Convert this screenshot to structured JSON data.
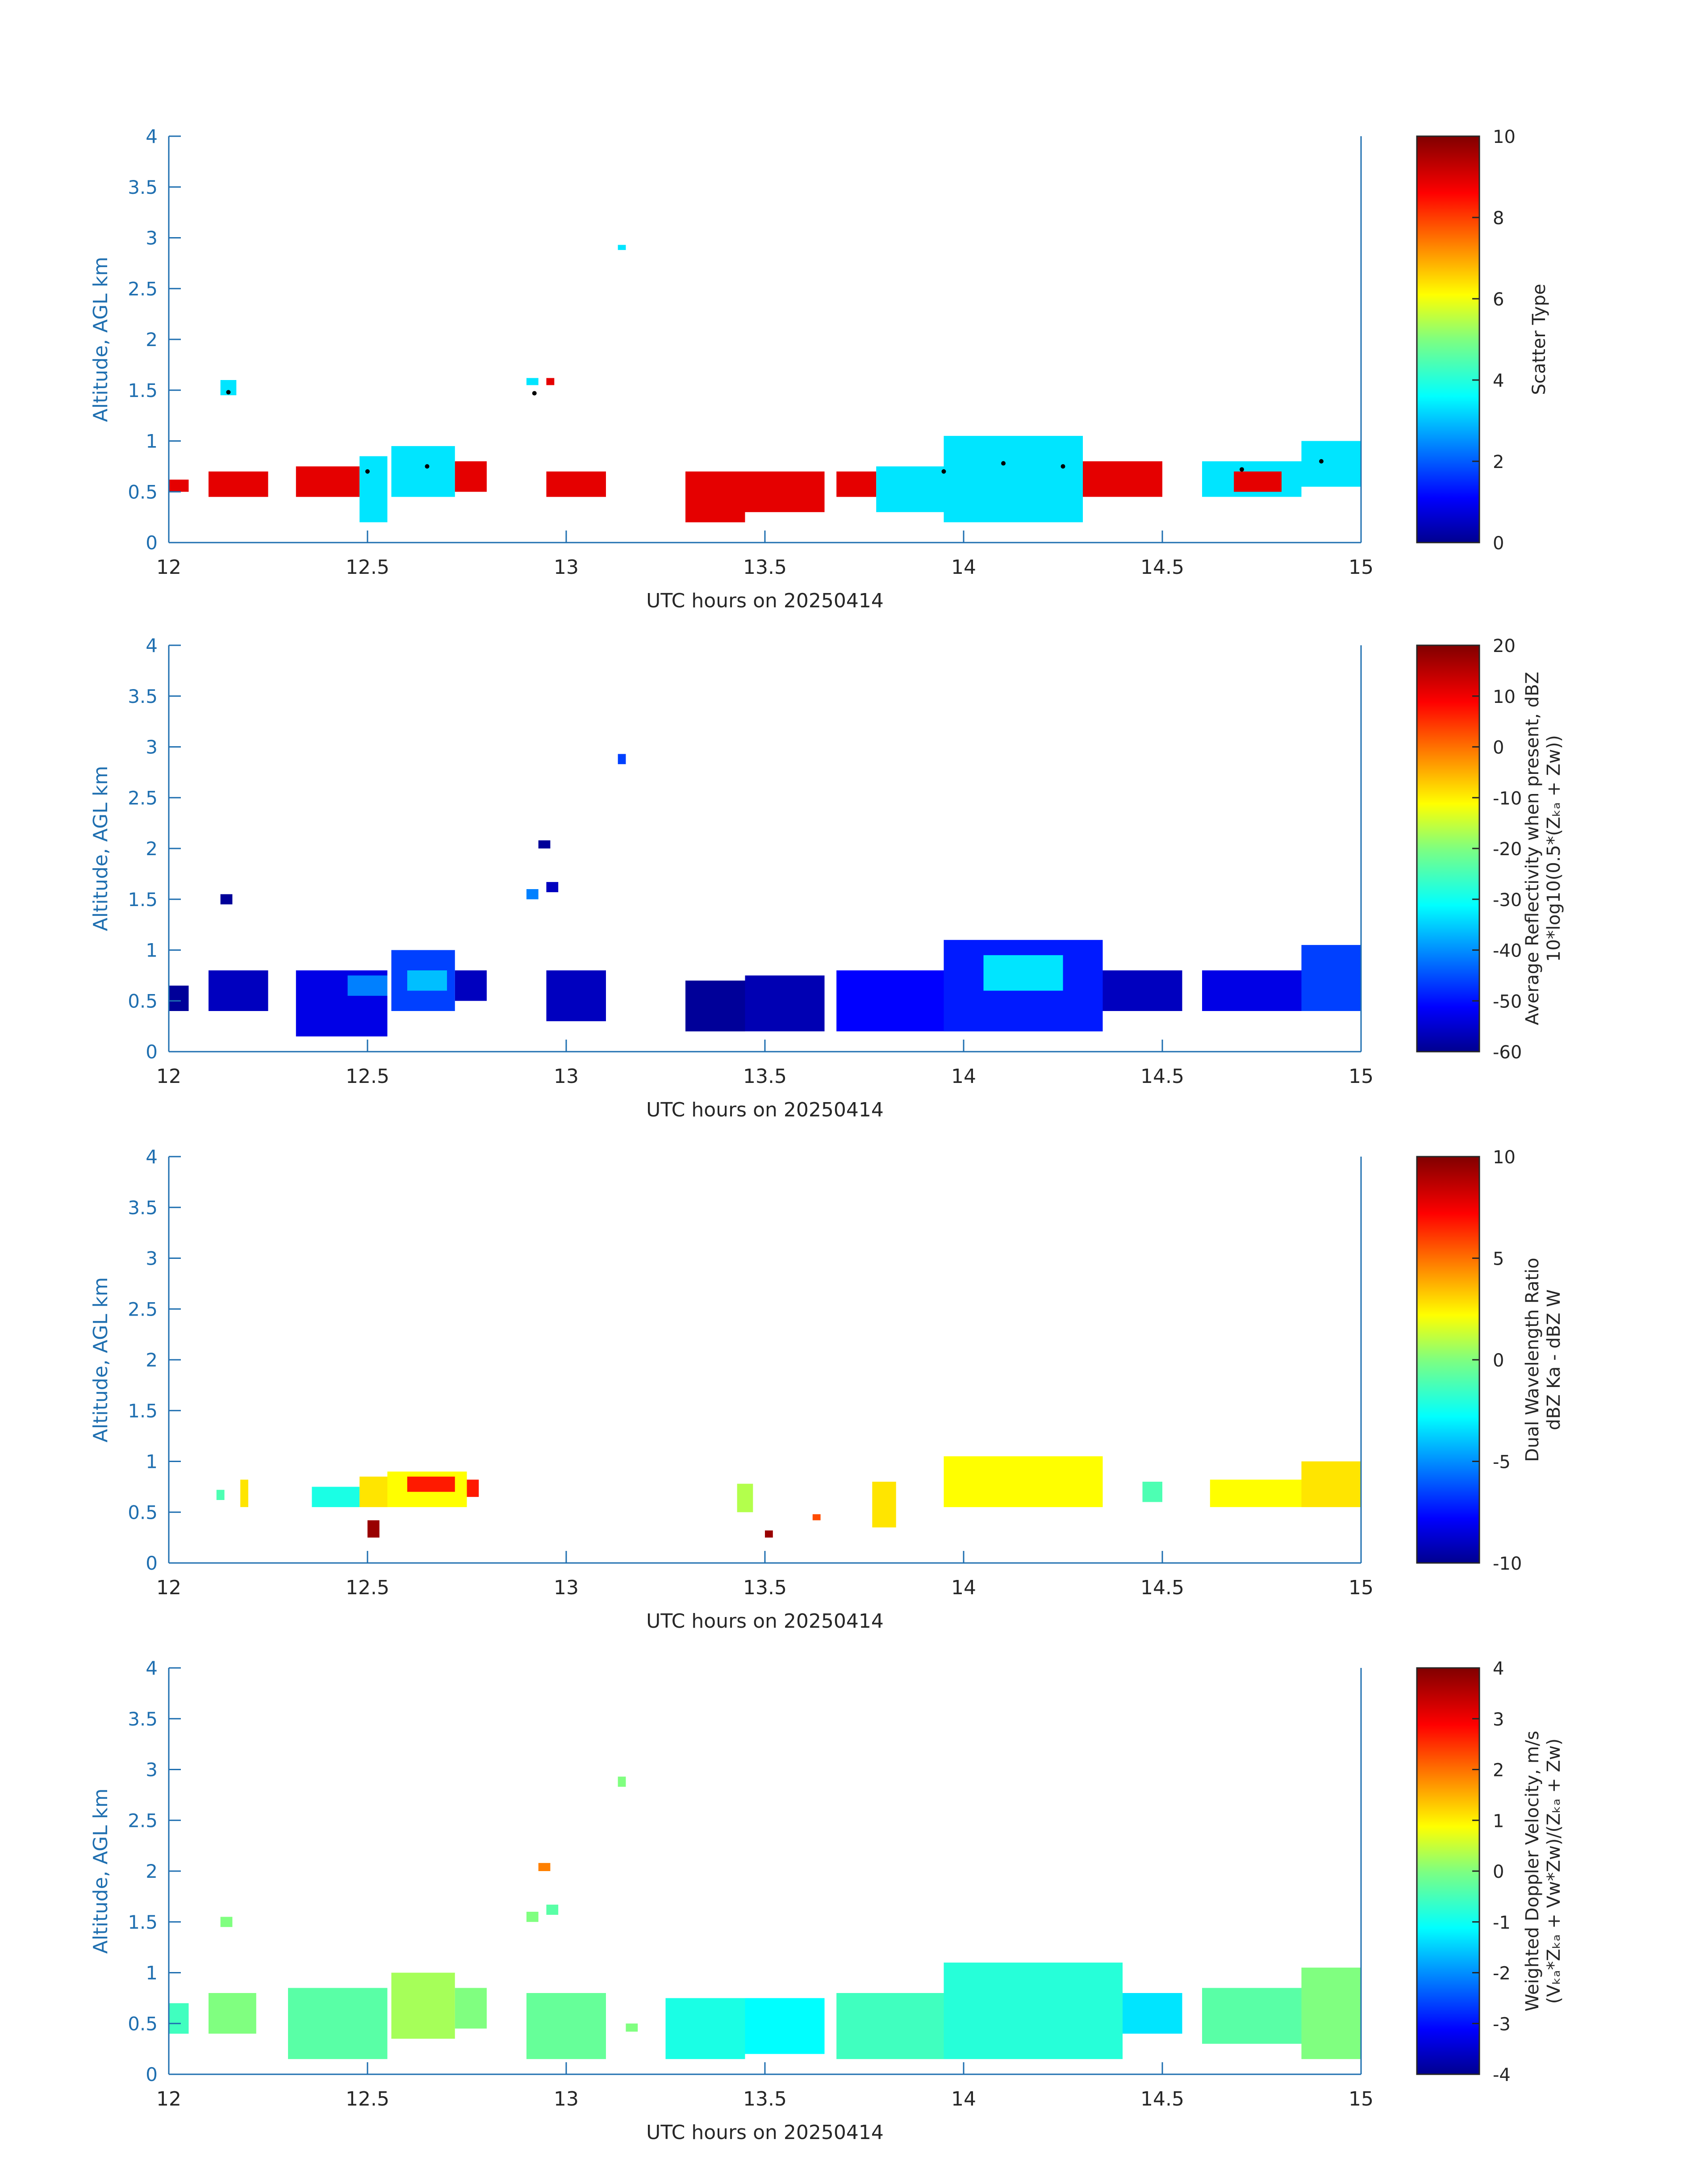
{
  "colors": {
    "axis": "#1f6fb0",
    "text": "#262626",
    "colormap": "jet",
    "marker": "#000000"
  },
  "panels": [
    {
      "ylabel": "Altitude, AGL km",
      "xlabel": "UTC hours on 20250414",
      "x_ticks": [
        "12",
        "12.5",
        "13",
        "13.5",
        "14",
        "14.5",
        "15"
      ],
      "y_ticks": [
        "0",
        "0.5",
        "1",
        "1.5",
        "2",
        "2.5",
        "3",
        "3.5",
        "4"
      ],
      "colorbar_ticks": [
        "0",
        "2",
        "4",
        "6",
        "8",
        "10"
      ],
      "colorbar_label_lines": [
        "Scatter Type"
      ]
    },
    {
      "ylabel": "Altitude, AGL km",
      "xlabel": "UTC hours on 20250414",
      "x_ticks": [
        "12",
        "12.5",
        "13",
        "13.5",
        "14",
        "14.5",
        "15"
      ],
      "y_ticks": [
        "0",
        "0.5",
        "1",
        "1.5",
        "2",
        "2.5",
        "3",
        "3.5",
        "4"
      ],
      "colorbar_ticks": [
        "-60",
        "-50",
        "-40",
        "-30",
        "-20",
        "-10",
        "0",
        "10",
        "20"
      ],
      "colorbar_label_lines": [
        "Average Reflectivity when present, dBZ",
        "10*log10(0.5*(Zₖₐ + Zᴡ))"
      ]
    },
    {
      "ylabel": "Altitude, AGL km",
      "xlabel": "UTC hours on 20250414",
      "x_ticks": [
        "12",
        "12.5",
        "13",
        "13.5",
        "14",
        "14.5",
        "15"
      ],
      "y_ticks": [
        "0",
        "0.5",
        "1",
        "1.5",
        "2",
        "2.5",
        "3",
        "3.5",
        "4"
      ],
      "colorbar_ticks": [
        "-10",
        "-5",
        "0",
        "5",
        "10"
      ],
      "colorbar_label_lines": [
        "Dual Wavelength Ratio",
        "dBZ Ka - dBZ W"
      ]
    },
    {
      "ylabel": "Altitude, AGL km",
      "xlabel": "UTC hours on 20250414",
      "x_ticks": [
        "12",
        "12.5",
        "13",
        "13.5",
        "14",
        "14.5",
        "15"
      ],
      "y_ticks": [
        "0",
        "0.5",
        "1",
        "1.5",
        "2",
        "2.5",
        "3",
        "3.5",
        "4"
      ],
      "colorbar_ticks": [
        "-4",
        "-3",
        "-2",
        "-1",
        "0",
        "1",
        "2",
        "3",
        "4"
      ],
      "colorbar_label_lines": [
        "Weighted Doppler Velocity, m/s",
        "(Vₖₐ*Zₖₐ + Vᴡ*Zᴡ)/(Zₖₐ + Zᴡ)"
      ]
    }
  ],
  "chart_data": [
    {
      "type": "heatmap",
      "title": "",
      "xlabel": "UTC hours on 20250414",
      "ylabel": "Altitude, AGL km",
      "xlim": [
        12,
        15
      ],
      "ylim": [
        0,
        4
      ],
      "colorbar": {
        "label": "Scatter Type",
        "range": [
          0,
          10
        ],
        "colormap": "jet"
      },
      "cells": [
        {
          "x": [
            12.0,
            12.05
          ],
          "y": [
            0.5,
            0.62
          ],
          "value": 9
        },
        {
          "x": [
            12.1,
            12.25
          ],
          "y": [
            0.45,
            0.7
          ],
          "value": 9
        },
        {
          "x": [
            12.32,
            12.48
          ],
          "y": [
            0.45,
            0.75
          ],
          "value": 9
        },
        {
          "x": [
            12.48,
            12.55
          ],
          "y": [
            0.2,
            0.85
          ],
          "value": 3.5
        },
        {
          "x": [
            12.56,
            12.72
          ],
          "y": [
            0.45,
            0.95
          ],
          "value": 3.5
        },
        {
          "x": [
            12.72,
            12.8
          ],
          "y": [
            0.5,
            0.8
          ],
          "value": 9
        },
        {
          "x": [
            12.95,
            13.1
          ],
          "y": [
            0.45,
            0.7
          ],
          "value": 9
        },
        {
          "x": [
            13.3,
            13.45
          ],
          "y": [
            0.2,
            0.7
          ],
          "value": 9
        },
        {
          "x": [
            13.45,
            13.65
          ],
          "y": [
            0.3,
            0.7
          ],
          "value": 9
        },
        {
          "x": [
            13.68,
            13.78
          ],
          "y": [
            0.45,
            0.7
          ],
          "value": 9
        },
        {
          "x": [
            13.78,
            13.95
          ],
          "y": [
            0.3,
            0.75
          ],
          "value": 3.5
        },
        {
          "x": [
            13.95,
            14.3
          ],
          "y": [
            0.2,
            1.05
          ],
          "value": 3.5
        },
        {
          "x": [
            14.3,
            14.5
          ],
          "y": [
            0.45,
            0.8
          ],
          "value": 9
        },
        {
          "x": [
            14.6,
            14.85
          ],
          "y": [
            0.45,
            0.8
          ],
          "value": 3.5
        },
        {
          "x": [
            14.68,
            14.8
          ],
          "y": [
            0.5,
            0.7
          ],
          "value": 9
        },
        {
          "x": [
            14.85,
            15.0
          ],
          "y": [
            0.55,
            1.0
          ],
          "value": 3.5
        },
        {
          "x": [
            12.13,
            12.17
          ],
          "y": [
            1.45,
            1.6
          ],
          "value": 3.5
        },
        {
          "x": [
            12.9,
            12.93
          ],
          "y": [
            1.55,
            1.62
          ],
          "value": 3.5
        },
        {
          "x": [
            12.95,
            12.97
          ],
          "y": [
            1.55,
            1.62
          ],
          "value": 9
        },
        {
          "x": [
            13.13,
            13.15
          ],
          "y": [
            2.88,
            2.93
          ],
          "value": 3.5
        }
      ],
      "cloud_base_markers": [
        {
          "x": 12.15,
          "y": 1.48
        },
        {
          "x": 12.92,
          "y": 1.47
        },
        {
          "x": 12.5,
          "y": 0.7
        },
        {
          "x": 12.65,
          "y": 0.75
        },
        {
          "x": 13.95,
          "y": 0.7
        },
        {
          "x": 14.1,
          "y": 0.78
        },
        {
          "x": 14.25,
          "y": 0.75
        },
        {
          "x": 14.7,
          "y": 0.72
        },
        {
          "x": 14.9,
          "y": 0.8
        }
      ]
    },
    {
      "type": "heatmap",
      "title": "",
      "xlabel": "UTC hours on 20250414",
      "ylabel": "Altitude, AGL km",
      "xlim": [
        12,
        15
      ],
      "ylim": [
        0,
        4
      ],
      "colorbar": {
        "label": "Average Reflectivity when present, dBZ",
        "range": [
          -60,
          20
        ],
        "colormap": "jet"
      },
      "cells": [
        {
          "x": [
            12.0,
            12.05
          ],
          "y": [
            0.4,
            0.65
          ],
          "value": -58
        },
        {
          "x": [
            12.1,
            12.25
          ],
          "y": [
            0.4,
            0.8
          ],
          "value": -55
        },
        {
          "x": [
            12.32,
            12.55
          ],
          "y": [
            0.15,
            0.8
          ],
          "value": -52
        },
        {
          "x": [
            12.45,
            12.55
          ],
          "y": [
            0.55,
            0.75
          ],
          "value": -40
        },
        {
          "x": [
            12.56,
            12.72
          ],
          "y": [
            0.4,
            1.0
          ],
          "value": -45
        },
        {
          "x": [
            12.6,
            12.7
          ],
          "y": [
            0.6,
            0.8
          ],
          "value": -35
        },
        {
          "x": [
            12.72,
            12.8
          ],
          "y": [
            0.5,
            0.8
          ],
          "value": -55
        },
        {
          "x": [
            12.95,
            13.1
          ],
          "y": [
            0.3,
            0.8
          ],
          "value": -55
        },
        {
          "x": [
            13.3,
            13.45
          ],
          "y": [
            0.2,
            0.7
          ],
          "value": -58
        },
        {
          "x": [
            13.45,
            13.65
          ],
          "y": [
            0.2,
            0.75
          ],
          "value": -56
        },
        {
          "x": [
            13.68,
            13.95
          ],
          "y": [
            0.2,
            0.8
          ],
          "value": -50
        },
        {
          "x": [
            13.95,
            14.35
          ],
          "y": [
            0.2,
            1.1
          ],
          "value": -48
        },
        {
          "x": [
            14.05,
            14.25
          ],
          "y": [
            0.6,
            0.95
          ],
          "value": -32
        },
        {
          "x": [
            14.35,
            14.55
          ],
          "y": [
            0.4,
            0.8
          ],
          "value": -55
        },
        {
          "x": [
            14.6,
            14.85
          ],
          "y": [
            0.4,
            0.8
          ],
          "value": -52
        },
        {
          "x": [
            14.85,
            15.0
          ],
          "y": [
            0.4,
            1.05
          ],
          "value": -45
        },
        {
          "x": [
            12.13,
            12.16
          ],
          "y": [
            1.45,
            1.55
          ],
          "value": -58
        },
        {
          "x": [
            12.9,
            12.93
          ],
          "y": [
            1.5,
            1.6
          ],
          "value": -40
        },
        {
          "x": [
            12.93,
            12.96
          ],
          "y": [
            2.0,
            2.08
          ],
          "value": -58
        },
        {
          "x": [
            12.95,
            12.98
          ],
          "y": [
            1.57,
            1.67
          ],
          "value": -55
        },
        {
          "x": [
            13.13,
            13.15
          ],
          "y": [
            2.83,
            2.93
          ],
          "value": -45
        }
      ]
    },
    {
      "type": "heatmap",
      "title": "",
      "xlabel": "UTC hours on 20250414",
      "ylabel": "Altitude, AGL km",
      "xlim": [
        12,
        15
      ],
      "ylim": [
        0,
        4
      ],
      "colorbar": {
        "label": "Dual Wavelength Ratio",
        "range": [
          -10,
          10
        ],
        "colormap": "jet"
      },
      "cells": [
        {
          "x": [
            12.12,
            12.14
          ],
          "y": [
            0.62,
            0.72
          ],
          "value": -1
        },
        {
          "x": [
            12.18,
            12.2
          ],
          "y": [
            0.55,
            0.82
          ],
          "value": 3
        },
        {
          "x": [
            12.36,
            12.48
          ],
          "y": [
            0.55,
            0.75
          ],
          "value": -2
        },
        {
          "x": [
            12.48,
            12.55
          ],
          "y": [
            0.55,
            0.85
          ],
          "value": 3
        },
        {
          "x": [
            12.5,
            12.53
          ],
          "y": [
            0.25,
            0.42
          ],
          "value": 9.5
        },
        {
          "x": [
            12.55,
            12.75
          ],
          "y": [
            0.55,
            0.9
          ],
          "value": 2.5
        },
        {
          "x": [
            12.6,
            12.72
          ],
          "y": [
            0.7,
            0.85
          ],
          "value": 7
        },
        {
          "x": [
            12.75,
            12.78
          ],
          "y": [
            0.65,
            0.82
          ],
          "value": 7
        },
        {
          "x": [
            13.43,
            13.47
          ],
          "y": [
            0.5,
            0.78
          ],
          "value": 1
        },
        {
          "x": [
            13.5,
            13.52
          ],
          "y": [
            0.25,
            0.32
          ],
          "value": 9.5
        },
        {
          "x": [
            13.62,
            13.64
          ],
          "y": [
            0.42,
            0.48
          ],
          "value": 6
        },
        {
          "x": [
            13.77,
            13.83
          ],
          "y": [
            0.35,
            0.8
          ],
          "value": 3
        },
        {
          "x": [
            13.95,
            14.35
          ],
          "y": [
            0.55,
            1.05
          ],
          "value": 2.5
        },
        {
          "x": [
            14.45,
            14.5
          ],
          "y": [
            0.6,
            0.8
          ],
          "value": -1
        },
        {
          "x": [
            14.62,
            14.85
          ],
          "y": [
            0.55,
            0.82
          ],
          "value": 2.5
        },
        {
          "x": [
            14.85,
            15.0
          ],
          "y": [
            0.55,
            1.0
          ],
          "value": 3
        }
      ]
    },
    {
      "type": "heatmap",
      "title": "",
      "xlabel": "UTC hours on 20250414",
      "ylabel": "Altitude, AGL km",
      "xlim": [
        12,
        15
      ],
      "ylim": [
        0,
        4
      ],
      "colorbar": {
        "label": "Weighted Doppler Velocity, m/s",
        "range": [
          -4,
          4
        ],
        "colormap": "jet"
      },
      "cells": [
        {
          "x": [
            12.0,
            12.05
          ],
          "y": [
            0.4,
            0.7
          ],
          "value": -0.5
        },
        {
          "x": [
            12.1,
            12.22
          ],
          "y": [
            0.4,
            0.8
          ],
          "value": 0
        },
        {
          "x": [
            12.3,
            12.55
          ],
          "y": [
            0.15,
            0.85
          ],
          "value": -0.3
        },
        {
          "x": [
            12.56,
            12.72
          ],
          "y": [
            0.35,
            1.0
          ],
          "value": 0.3
        },
        {
          "x": [
            12.72,
            12.8
          ],
          "y": [
            0.45,
            0.85
          ],
          "value": 0
        },
        {
          "x": [
            12.9,
            13.1
          ],
          "y": [
            0.15,
            0.8
          ],
          "value": -0.2
        },
        {
          "x": [
            13.15,
            13.18
          ],
          "y": [
            0.42,
            0.5
          ],
          "value": 0
        },
        {
          "x": [
            13.25,
            13.45
          ],
          "y": [
            0.15,
            0.75
          ],
          "value": -0.8
        },
        {
          "x": [
            13.45,
            13.65
          ],
          "y": [
            0.2,
            0.75
          ],
          "value": -1.0
        },
        {
          "x": [
            13.68,
            13.95
          ],
          "y": [
            0.15,
            0.8
          ],
          "value": -0.5
        },
        {
          "x": [
            13.95,
            14.4
          ],
          "y": [
            0.15,
            1.1
          ],
          "value": -0.7
        },
        {
          "x": [
            14.4,
            14.55
          ],
          "y": [
            0.4,
            0.8
          ],
          "value": -1.2
        },
        {
          "x": [
            14.6,
            14.85
          ],
          "y": [
            0.3,
            0.85
          ],
          "value": -0.3
        },
        {
          "x": [
            14.85,
            15.0
          ],
          "y": [
            0.15,
            1.05
          ],
          "value": 0
        },
        {
          "x": [
            12.13,
            12.16
          ],
          "y": [
            1.45,
            1.55
          ],
          "value": 0
        },
        {
          "x": [
            12.9,
            12.93
          ],
          "y": [
            1.5,
            1.6
          ],
          "value": 0
        },
        {
          "x": [
            12.93,
            12.96
          ],
          "y": [
            2.0,
            2.08
          ],
          "value": 2
        },
        {
          "x": [
            12.95,
            12.98
          ],
          "y": [
            1.57,
            1.67
          ],
          "value": -0.3
        },
        {
          "x": [
            13.13,
            13.15
          ],
          "y": [
            2.83,
            2.93
          ],
          "value": 0
        }
      ]
    }
  ]
}
